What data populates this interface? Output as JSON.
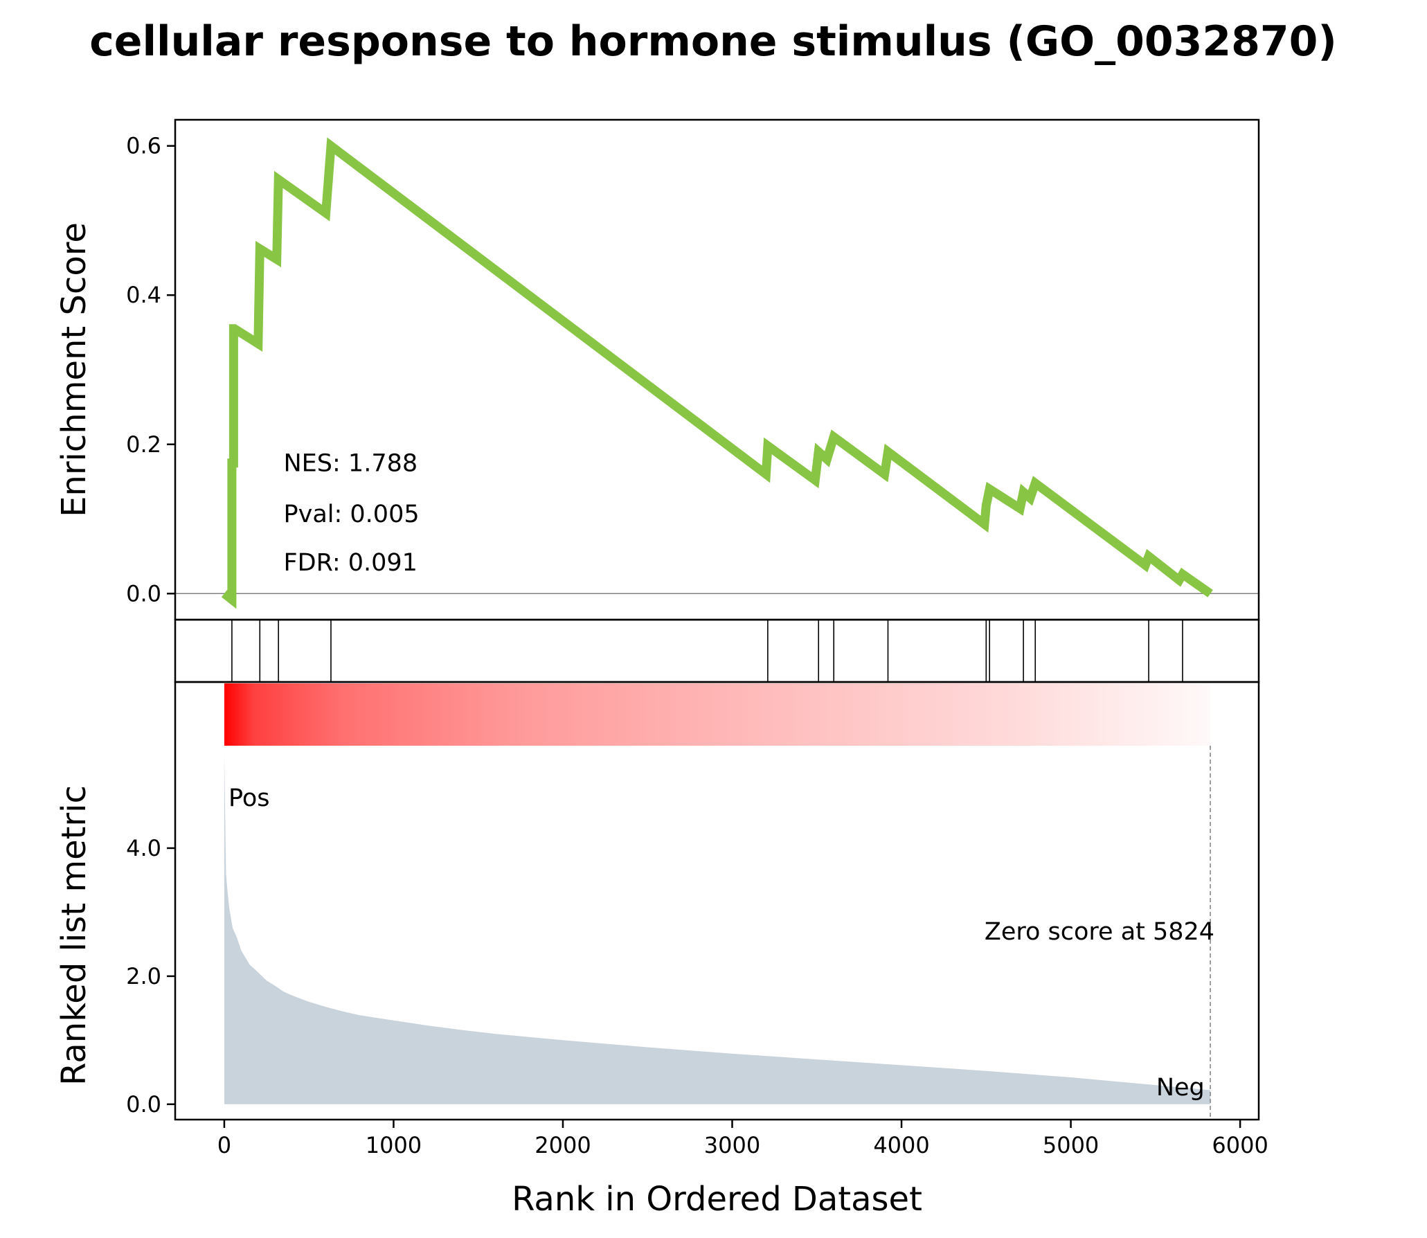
{
  "chart_data": {
    "type": "line",
    "title": "cellular response to hormone stimulus (GO_0032870)",
    "xlabel": "Rank in Ordered Dataset",
    "xlim": [
      -290,
      6110
    ],
    "x_ticks": [
      "0",
      "1000",
      "2000",
      "3000",
      "4000",
      "5000",
      "6000"
    ],
    "x_tick_values": [
      0,
      1000,
      2000,
      3000,
      4000,
      5000,
      6000
    ],
    "colors": {
      "es_line": "#88c544",
      "hit_line": "#000000",
      "metric_fill": "#c9d3dc",
      "heat_start": "#ff0000",
      "pos_label": "#ff0000",
      "neg_label": "#0000ff",
      "zero_line": "#808080"
    },
    "enrichment_panel": {
      "ylabel": "Enrichment Score",
      "ylim": [
        -0.035,
        0.635
      ],
      "y_ticks": [
        "0.0",
        "0.2",
        "0.4",
        "0.6"
      ],
      "y_tick_values": [
        0,
        0.2,
        0.4,
        0.6
      ],
      "series": [
        {
          "x": [
            0,
            45,
            45,
            55,
            55,
            60,
            60,
            200,
            200,
            210,
            210,
            310,
            310,
            320,
            320,
            600,
            600,
            630,
            630,
            3200,
            3200,
            3210,
            3210,
            3490,
            3490,
            3510,
            3510,
            3560,
            3560,
            3600,
            3600,
            3900,
            3900,
            3920,
            3920,
            4490,
            4490,
            4500,
            4500,
            4520,
            4520,
            4700,
            4700,
            4720,
            4720,
            4760,
            4760,
            4790,
            4790,
            5440,
            5440,
            5460,
            5460,
            5640,
            5640,
            5660,
            5660,
            5824
          ],
          "y": [
            0,
            -0.008,
            0.175,
            0.175,
            0.355,
            0.355,
            0.355,
            0.335,
            0.335,
            0.462,
            0.462,
            0.448,
            0.448,
            0.555,
            0.555,
            0.51,
            0.51,
            0.6,
            0.6,
            0.16,
            0.16,
            0.198,
            0.198,
            0.152,
            0.152,
            0.19,
            0.19,
            0.18,
            0.18,
            0.21,
            0.21,
            0.16,
            0.16,
            0.19,
            0.19,
            0.093,
            0.093,
            0.118,
            0.118,
            0.14,
            0.14,
            0.114,
            0.114,
            0.136,
            0.136,
            0.128,
            0.128,
            0.148,
            0.148,
            0.038,
            0.038,
            0.05,
            0.05,
            0.018,
            0.018,
            0.026,
            0.026,
            0
          ]
        }
      ],
      "annotations": [
        "NES: 1.788",
        "Pval: 0.005",
        "FDR: 0.091"
      ],
      "annotation_anchor": {
        "x": 350,
        "y": [
          0.175,
          0.107,
          0.042
        ]
      }
    },
    "hits_panel": {
      "hits": [
        45,
        210,
        320,
        630,
        3210,
        3510,
        3600,
        3920,
        4500,
        4520,
        4720,
        4790,
        5460,
        5660
      ]
    },
    "heatmap_panel": {
      "x_range": [
        0,
        5824
      ]
    },
    "metric_panel": {
      "type": "area",
      "ylabel": "Ranked list metric",
      "ylim": [
        -0.24,
        5.6
      ],
      "y_ticks": [
        "0.0",
        "2.0",
        "4.0"
      ],
      "y_tick_values": [
        0,
        2,
        4
      ],
      "series": [
        {
          "x": [
            0,
            10,
            20,
            30,
            50,
            75,
            100,
            150,
            200,
            250,
            300,
            350,
            400,
            500,
            600,
            700,
            800,
            1000,
            1200,
            1400,
            1600,
            1800,
            2000,
            2500,
            3000,
            3500,
            4000,
            4500,
            5000,
            5500,
            5824
          ],
          "y": [
            5.5,
            3.6,
            3.3,
            3.05,
            2.75,
            2.6,
            2.4,
            2.18,
            2.06,
            1.93,
            1.85,
            1.76,
            1.7,
            1.6,
            1.52,
            1.45,
            1.39,
            1.31,
            1.23,
            1.16,
            1.1,
            1.05,
            1.0,
            0.89,
            0.79,
            0.7,
            0.61,
            0.52,
            0.42,
            0.3,
            0.22
          ]
        }
      ],
      "pos_label": "Pos",
      "neg_label": "Neg",
      "zero_score_label": "Zero score at 5824",
      "zero_score_rank": 5824
    }
  }
}
